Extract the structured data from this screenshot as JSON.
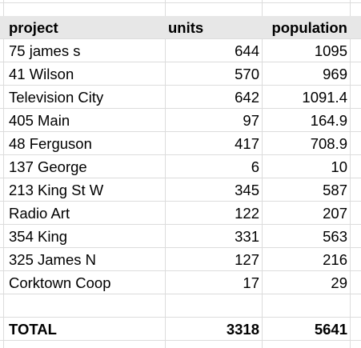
{
  "sheet": {
    "headers": {
      "project": "project",
      "units": "units",
      "population": "population"
    },
    "rows": [
      {
        "project": "75 james s",
        "units": "644",
        "population": "1095"
      },
      {
        "project": "41 Wilson",
        "units": "570",
        "population": "969"
      },
      {
        "project": "Television City",
        "units": "642",
        "population": "1091.4"
      },
      {
        "project": "405 Main",
        "units": "97",
        "population": "164.9"
      },
      {
        "project": "48 Ferguson",
        "units": "417",
        "population": "708.9"
      },
      {
        "project": "137 George",
        "units": "6",
        "population": "10"
      },
      {
        "project": "213 King St W",
        "units": "345",
        "population": "587"
      },
      {
        "project": "Radio Art",
        "units": "122",
        "population": "207"
      },
      {
        "project": "354 King",
        "units": "331",
        "population": "563"
      },
      {
        "project": "325 James N",
        "units": "127",
        "population": "216"
      },
      {
        "project": "Corktown Coop",
        "units": "17",
        "population": "29"
      }
    ],
    "total": {
      "label": "TOTAL",
      "units": "3318",
      "population": "5641"
    },
    "header_background": "#e7e7e7",
    "gridline_color": "#dcdcdc"
  }
}
